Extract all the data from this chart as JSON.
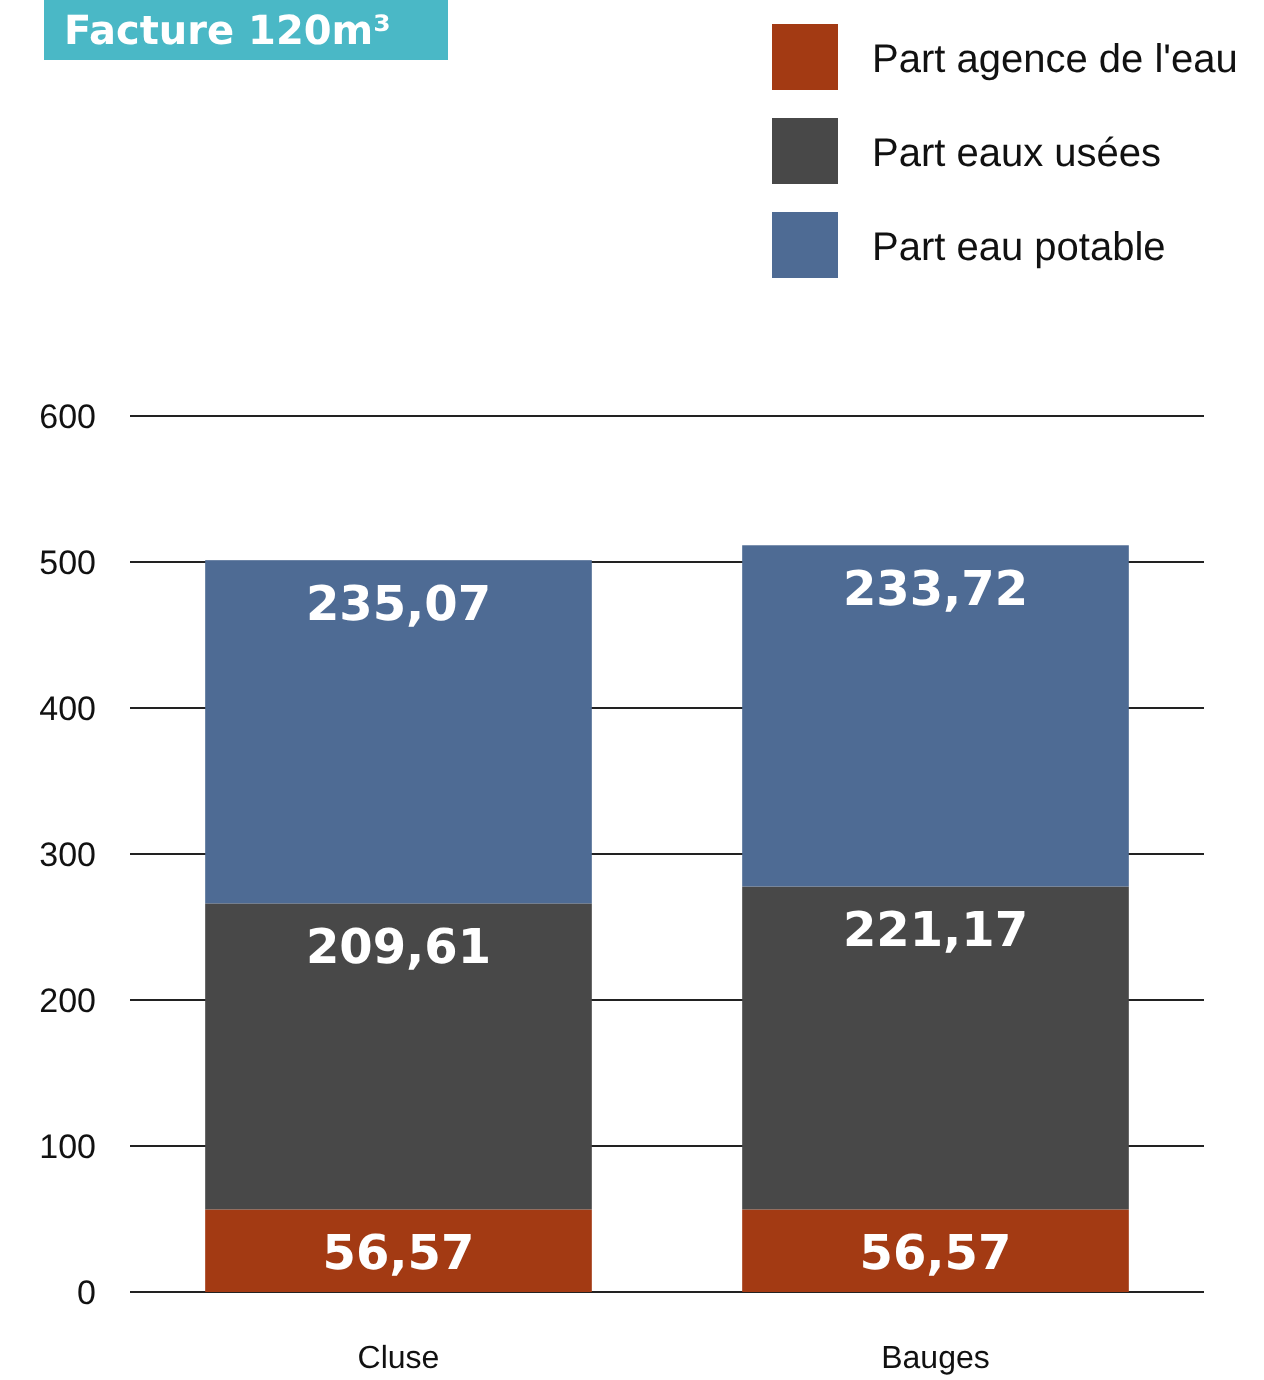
{
  "chart_data": {
    "type": "bar",
    "title": "Facture 120m³",
    "categories": [
      "Cluse",
      "Bauges"
    ],
    "stacked": true,
    "series": [
      {
        "name": "Part agence de l'eau",
        "color": "#a33a13",
        "values": [
          56.57,
          56.57
        ],
        "value_labels": [
          "56,57",
          "56,57"
        ]
      },
      {
        "name": "Part eaux usées",
        "color": "#484848",
        "values": [
          209.61,
          221.17
        ],
        "value_labels": [
          "209,61",
          "221,17"
        ]
      },
      {
        "name": "Part eau potable",
        "color": "#4e6b94",
        "values": [
          235.07,
          233.72
        ],
        "value_labels": [
          "235,07",
          "233,72"
        ]
      }
    ],
    "ylim": [
      0,
      600
    ],
    "yticks": [
      0,
      100,
      200,
      300,
      400,
      500,
      600
    ],
    "grid": "y",
    "legend": "top right"
  }
}
